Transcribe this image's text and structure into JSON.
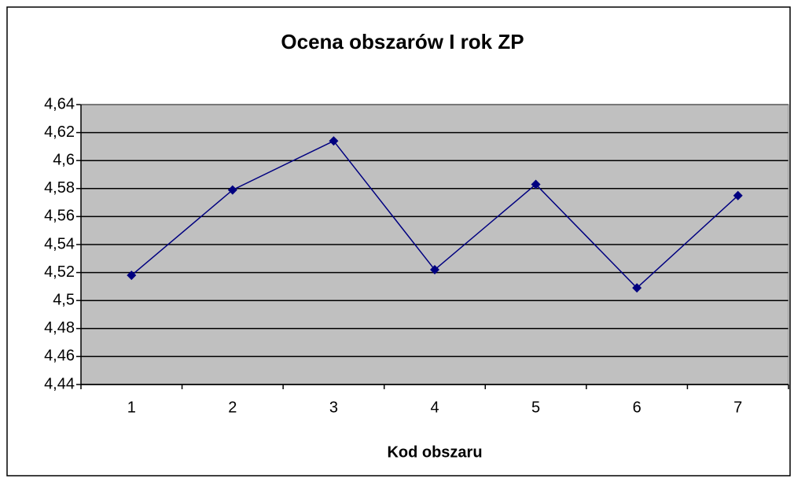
{
  "chart_data": {
    "type": "line",
    "title": "Ocena obszarów I rok ZP",
    "x_label": "Kod obszaru",
    "categories": [
      1,
      2,
      3,
      4,
      5,
      6,
      7
    ],
    "values": [
      4.518,
      4.579,
      4.614,
      4.522,
      4.583,
      4.509,
      4.575
    ],
    "color": "#000080",
    "ylim": [
      4.44,
      4.64
    ],
    "yticks": [
      {
        "value": 4.44,
        "label": "4,44"
      },
      {
        "value": 4.46,
        "label": "4,46"
      },
      {
        "value": 4.48,
        "label": "4,48"
      },
      {
        "value": 4.5,
        "label": "4,5"
      },
      {
        "value": 4.52,
        "label": "4,52"
      },
      {
        "value": 4.54,
        "label": "4,54"
      },
      {
        "value": 4.56,
        "label": "4,56"
      },
      {
        "value": 4.58,
        "label": "4,58"
      },
      {
        "value": 4.6,
        "label": "4,6"
      },
      {
        "value": 4.62,
        "label": "4,62"
      },
      {
        "value": 4.64,
        "label": "4,64"
      }
    ],
    "grid": true
  }
}
